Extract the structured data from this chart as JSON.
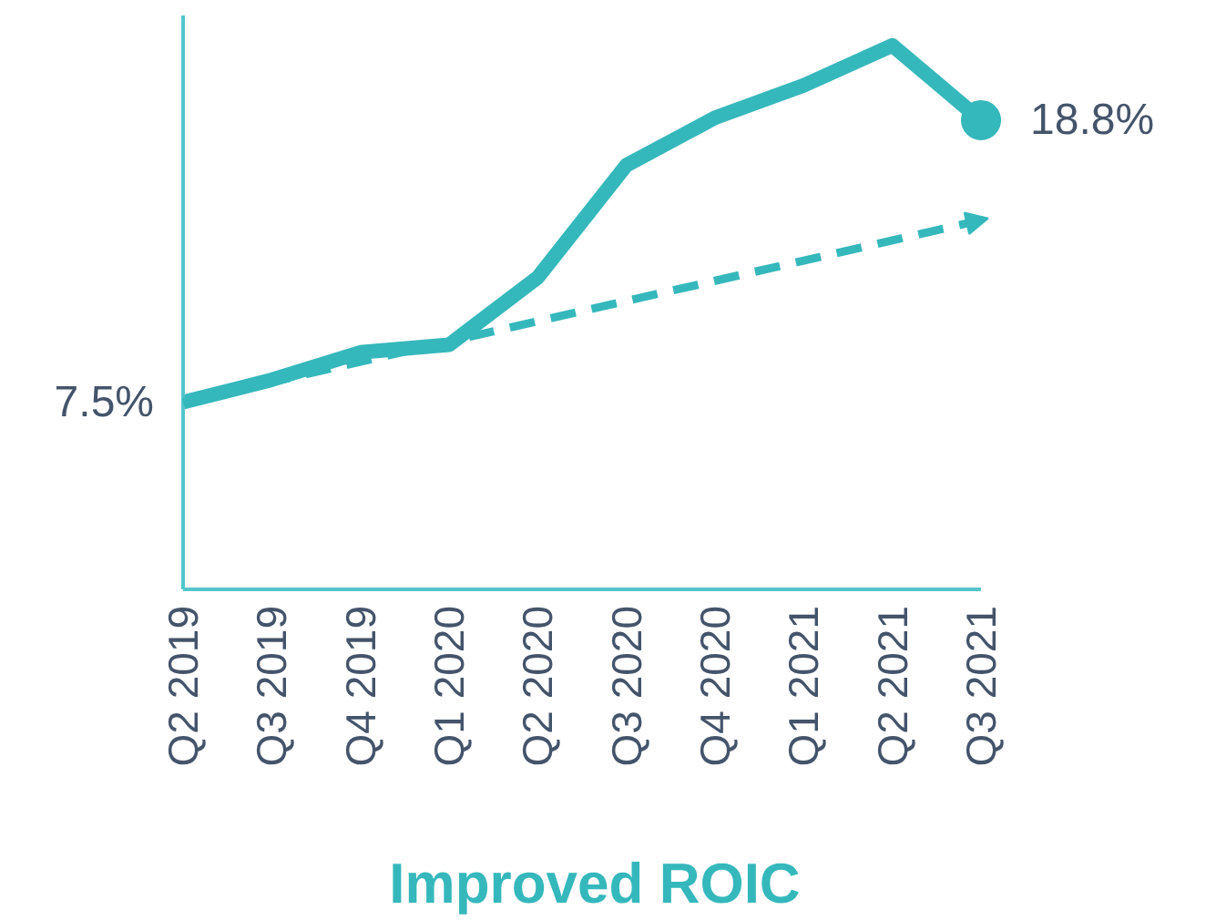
{
  "chart_data": {
    "type": "line",
    "title": "Improved ROIC",
    "categories": [
      "Q2 2019",
      "Q3 2019",
      "Q4 2019",
      "Q1 2020",
      "Q2 2020",
      "Q3 2020",
      "Q4 2020",
      "Q1 2021",
      "Q2 2021",
      "Q3 2021"
    ],
    "series": [
      {
        "color": "#35b8bc",
        "values": [
          7.5,
          8.4,
          9.5,
          9.8,
          12.5,
          17.0,
          18.9,
          20.2,
          21.8,
          18.8
        ],
        "value_labels": [
          "7.5%",
          null,
          null,
          null,
          null,
          null,
          null,
          null,
          null,
          null
        ]
      },
      {
        "type": "line",
        "x": [
          "Q2 2019",
          "Q3 2021"
        ],
        "values": [
          7.5,
          14.8
        ],
        "color": "#35b8bc",
        "line_style": "dashed"
      },
      {
        "type": "scatter",
        "x": [
          "Q3 2021"
        ],
        "values": [
          18.8
        ],
        "color": "#35b8bc",
        "marker": "circle",
        "value_labels": [
          "18.8%"
        ]
      }
    ],
    "ylim": [
      0,
      23
    ],
    "tick_labels": "x"
  }
}
